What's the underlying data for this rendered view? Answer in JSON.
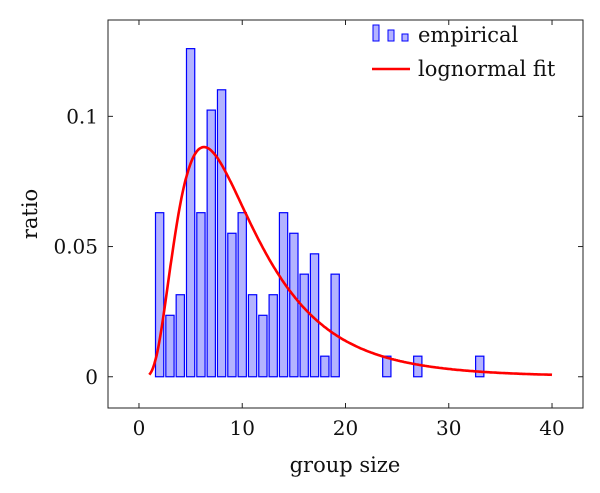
{
  "chart_data": [
    {
      "type": "bar",
      "title": "",
      "xlabel": "group size",
      "ylabel": "ratio",
      "xlim": [
        -3,
        43
      ],
      "ylim": [
        -0.012,
        0.137
      ],
      "xticks": [
        "0",
        "10",
        "20",
        "30",
        "40"
      ],
      "xtick_values": [
        0,
        10,
        20,
        30,
        40
      ],
      "yticks": [
        "0",
        "0.05",
        "0.1"
      ],
      "ytick_values": [
        0,
        0.05,
        0.1
      ],
      "grid": false,
      "legend_position": "top-right",
      "series": [
        {
          "name": "empirical",
          "type": "bar",
          "color": "#0000ff",
          "fill": "#b3b3ff",
          "x": [
            2,
            3,
            4,
            5,
            6,
            7,
            8,
            9,
            10,
            11,
            12,
            13,
            14,
            15,
            16,
            17,
            18,
            19,
            24,
            27,
            33
          ],
          "values": [
            0.063,
            0.0236,
            0.0315,
            0.126,
            0.063,
            0.1024,
            0.1102,
            0.0551,
            0.063,
            0.0315,
            0.0236,
            0.0315,
            0.063,
            0.0551,
            0.0394,
            0.0472,
            0.0079,
            0.0394,
            0.0079,
            0.0079,
            0.0079
          ]
        },
        {
          "name": "lognormal fit",
          "type": "line",
          "color": "#ff0000",
          "distribution": "lognormal",
          "mu": 2.2,
          "sigma": 0.6,
          "x_range": [
            1,
            40
          ]
        }
      ]
    }
  ]
}
